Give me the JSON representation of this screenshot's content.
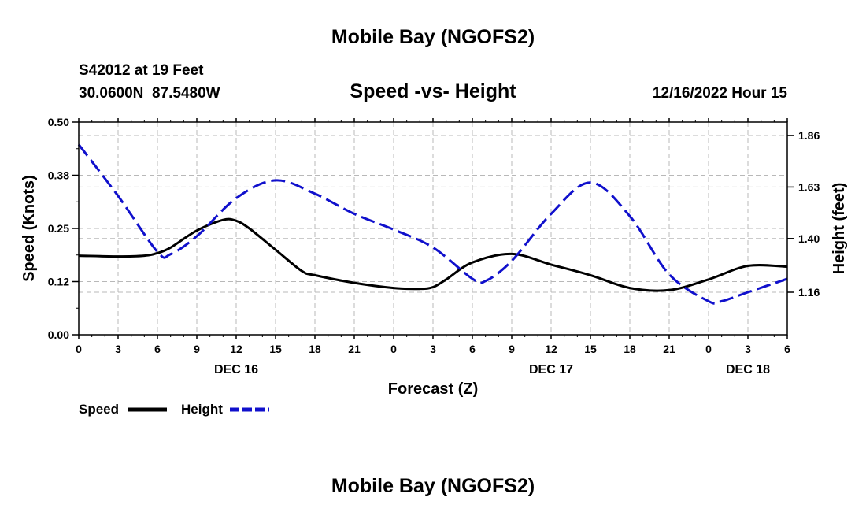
{
  "header": {
    "title": "Mobile Bay (NGOFS2)",
    "station_line": "S42012 at 19 Feet",
    "coords": "30.0600N  87.5480W",
    "valid_time": "12/16/2022 Hour 15",
    "footer_title": "Mobile Bay (NGOFS2)"
  },
  "chart_data": {
    "type": "line",
    "title": "Speed -vs- Height",
    "xlabel": "Forecast (Z)",
    "ylabel_left": "Speed (Knots)",
    "ylabel_right": "Height (feet)",
    "x_range_hours": [
      0,
      54
    ],
    "x_tick_hours": [
      0,
      3,
      6,
      9,
      12,
      15,
      18,
      21,
      24,
      27,
      30,
      33,
      36,
      39,
      42,
      45,
      48,
      51,
      54
    ],
    "x_tick_labels": [
      "0",
      "3",
      "6",
      "9",
      "12",
      "15",
      "18",
      "21",
      "0",
      "3",
      "6",
      "9",
      "12",
      "15",
      "18",
      "21",
      "0",
      "3",
      "6"
    ],
    "date_labels": [
      {
        "text": "DEC 16",
        "hour": 12
      },
      {
        "text": "DEC 17",
        "hour": 36
      },
      {
        "text": "DEC 18",
        "hour": 51
      }
    ],
    "y_left": {
      "range": [
        0,
        0.5
      ],
      "ticks": [
        0.0,
        0.125,
        0.25,
        0.375,
        0.5
      ],
      "tick_labels": [
        "0.00",
        "0.12",
        "0.25",
        "0.38",
        "0.50"
      ]
    },
    "y_right": {
      "range": [
        0.97,
        1.92
      ],
      "ticks": [
        1.16,
        1.4,
        1.63,
        1.86
      ],
      "tick_labels": [
        "1.16",
        "1.40",
        "1.63",
        "1.86"
      ]
    },
    "grid": true,
    "series": [
      {
        "name": "Speed",
        "axis": "left",
        "color": "#000000",
        "style": "solid",
        "x": [
          0,
          3,
          5,
          6,
          7,
          9,
          11,
          12,
          13,
          15,
          17,
          18,
          21,
          24,
          26,
          27,
          28,
          30,
          33,
          36,
          39,
          42,
          45,
          48,
          51,
          54
        ],
        "values": [
          0.186,
          0.184,
          0.186,
          0.192,
          0.205,
          0.245,
          0.27,
          0.268,
          0.25,
          0.2,
          0.15,
          0.14,
          0.122,
          0.11,
          0.108,
          0.112,
          0.13,
          0.17,
          0.19,
          0.165,
          0.14,
          0.11,
          0.105,
          0.13,
          0.162,
          0.16
        ]
      },
      {
        "name": "Height",
        "axis": "right",
        "color": "#1010cc",
        "style": "dashed",
        "x": [
          0,
          3,
          6,
          7,
          9,
          12,
          15,
          18,
          21,
          24,
          27,
          30,
          31,
          33,
          36,
          39,
          42,
          45,
          48,
          49,
          51,
          54
        ],
        "values": [
          1.82,
          1.59,
          1.34,
          1.33,
          1.41,
          1.58,
          1.66,
          1.6,
          1.51,
          1.44,
          1.36,
          1.22,
          1.21,
          1.3,
          1.51,
          1.65,
          1.5,
          1.24,
          1.12,
          1.12,
          1.16,
          1.22
        ]
      }
    ],
    "legend": [
      {
        "label": "Speed",
        "color": "#000000",
        "style": "solid"
      },
      {
        "label": "Height",
        "color": "#1010cc",
        "style": "dashed"
      }
    ]
  }
}
